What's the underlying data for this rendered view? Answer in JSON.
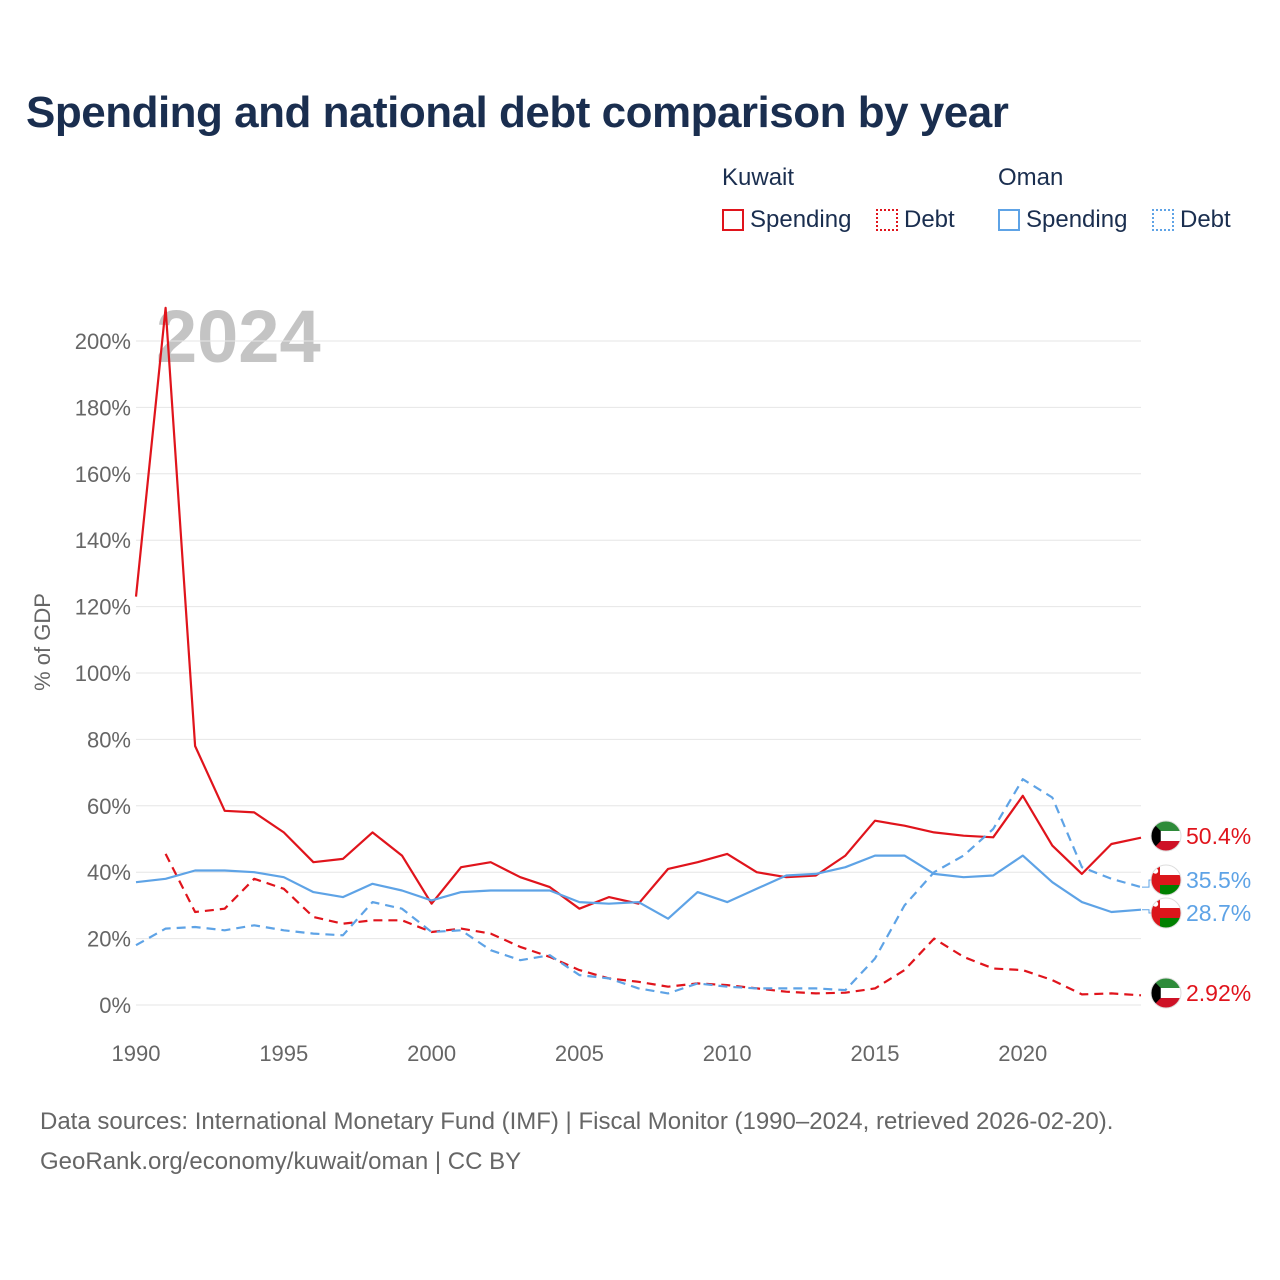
{
  "title": "Spending and national debt comparison by year",
  "legend": {
    "groups": [
      {
        "name": "Kuwait",
        "items": [
          "Spending",
          "Debt"
        ]
      },
      {
        "name": "Oman",
        "items": [
          "Spending",
          "Debt"
        ]
      }
    ]
  },
  "colors": {
    "kuwait": "#e0141c",
    "oman": "#5ea3e6",
    "grid": "#e6e6e6",
    "axis_text": "#666666",
    "year_watermark": "#c4c4c4"
  },
  "chart_data": {
    "type": "line",
    "year_label": "2024",
    "ylabel": "% of GDP",
    "ylim": [
      0,
      210
    ],
    "yticks": [
      0,
      20,
      40,
      60,
      80,
      100,
      120,
      140,
      160,
      180,
      200
    ],
    "ytick_labels": [
      "0%",
      "20%",
      "40%",
      "60%",
      "80%",
      "100%",
      "120%",
      "140%",
      "160%",
      "180%",
      "200%"
    ],
    "xlim": [
      1990,
      2024
    ],
    "xticks": [
      1990,
      1995,
      2000,
      2005,
      2010,
      2015,
      2020
    ],
    "xtick_labels": [
      "1990",
      "1995",
      "2000",
      "2005",
      "2010",
      "2015",
      "2020"
    ],
    "series": [
      {
        "name": "Kuwait Spending",
        "country": "Kuwait",
        "metric": "Spending",
        "color": "#e0141c",
        "dash": false,
        "x": [
          1990,
          1991,
          1992,
          1993,
          1994,
          1995,
          1996,
          1997,
          1998,
          1999,
          2000,
          2001,
          2002,
          2003,
          2004,
          2005,
          2006,
          2007,
          2008,
          2009,
          2010,
          2011,
          2012,
          2013,
          2014,
          2015,
          2016,
          2017,
          2018,
          2019,
          2020,
          2021,
          2022,
          2023,
          2024
        ],
        "values": [
          123,
          210,
          78,
          58.5,
          58,
          52,
          43,
          44,
          52,
          45,
          30.5,
          41.5,
          43,
          38.5,
          35.5,
          29,
          32.5,
          30.5,
          41,
          43,
          45.5,
          40,
          38.5,
          39,
          45,
          55.5,
          54,
          52,
          51,
          50.5,
          63,
          48,
          39.5,
          48.5,
          50.4
        ],
        "end_label": "50.4%"
      },
      {
        "name": "Kuwait Debt",
        "country": "Kuwait",
        "metric": "Debt",
        "color": "#e0141c",
        "dash": true,
        "x": [
          1991,
          1992,
          1993,
          1994,
          1995,
          1996,
          1997,
          1998,
          1999,
          2000,
          2001,
          2002,
          2003,
          2004,
          2005,
          2006,
          2007,
          2008,
          2009,
          2010,
          2011,
          2012,
          2013,
          2014,
          2015,
          2016,
          2017,
          2018,
          2019,
          2020,
          2021,
          2022,
          2023,
          2024
        ],
        "values": [
          45.5,
          28,
          29,
          38,
          35,
          26.5,
          24.5,
          25.5,
          25.5,
          22,
          23,
          21.5,
          17.5,
          14.5,
          10.5,
          8,
          7,
          5.5,
          6.5,
          6,
          5,
          4,
          3.5,
          3.7,
          5,
          10.5,
          20,
          14.5,
          11,
          10.5,
          7.5,
          3.2,
          3.5,
          2.92
        ],
        "end_label": "2.92%"
      },
      {
        "name": "Oman Spending",
        "country": "Oman",
        "metric": "Spending",
        "color": "#5ea3e6",
        "dash": false,
        "x": [
          1990,
          1991,
          1992,
          1993,
          1994,
          1995,
          1996,
          1997,
          1998,
          1999,
          2000,
          2001,
          2002,
          2003,
          2004,
          2005,
          2006,
          2007,
          2008,
          2009,
          2010,
          2011,
          2012,
          2013,
          2014,
          2015,
          2016,
          2017,
          2018,
          2019,
          2020,
          2021,
          2022,
          2023,
          2024
        ],
        "values": [
          37,
          38,
          40.5,
          40.5,
          40,
          38.5,
          34,
          32.5,
          36.5,
          34.5,
          31.5,
          34,
          34.5,
          34.5,
          34.5,
          31,
          30.5,
          31,
          26,
          34,
          31,
          35,
          39,
          39.5,
          41.5,
          45,
          45,
          39.5,
          38.5,
          39,
          45,
          37,
          31,
          28,
          28.7
        ],
        "end_label": "28.7%"
      },
      {
        "name": "Oman Debt",
        "country": "Oman",
        "metric": "Debt",
        "color": "#5ea3e6",
        "dash": true,
        "x": [
          1990,
          1991,
          1992,
          1993,
          1994,
          1995,
          1996,
          1997,
          1998,
          1999,
          2000,
          2001,
          2002,
          2003,
          2004,
          2005,
          2006,
          2007,
          2008,
          2009,
          2010,
          2011,
          2012,
          2013,
          2014,
          2015,
          2016,
          2017,
          2018,
          2019,
          2020,
          2021,
          2022,
          2023,
          2024
        ],
        "values": [
          18,
          23,
          23.5,
          22.5,
          24,
          22.5,
          21.5,
          21,
          31,
          29,
          22,
          22.5,
          16.5,
          13.5,
          15,
          9,
          8,
          5,
          3.5,
          6.5,
          5.5,
          5,
          5,
          5,
          4.5,
          14,
          30,
          40,
          45,
          53,
          68,
          62.5,
          41.5,
          38,
          35.5
        ],
        "end_label": "35.5%"
      }
    ]
  },
  "footer": {
    "line1": "Data sources: International Monetary Fund (IMF) | Fiscal Monitor (1990–2024, retrieved 2026-02-20).",
    "line2": "GeoRank.org/economy/kuwait/oman | CC BY"
  }
}
